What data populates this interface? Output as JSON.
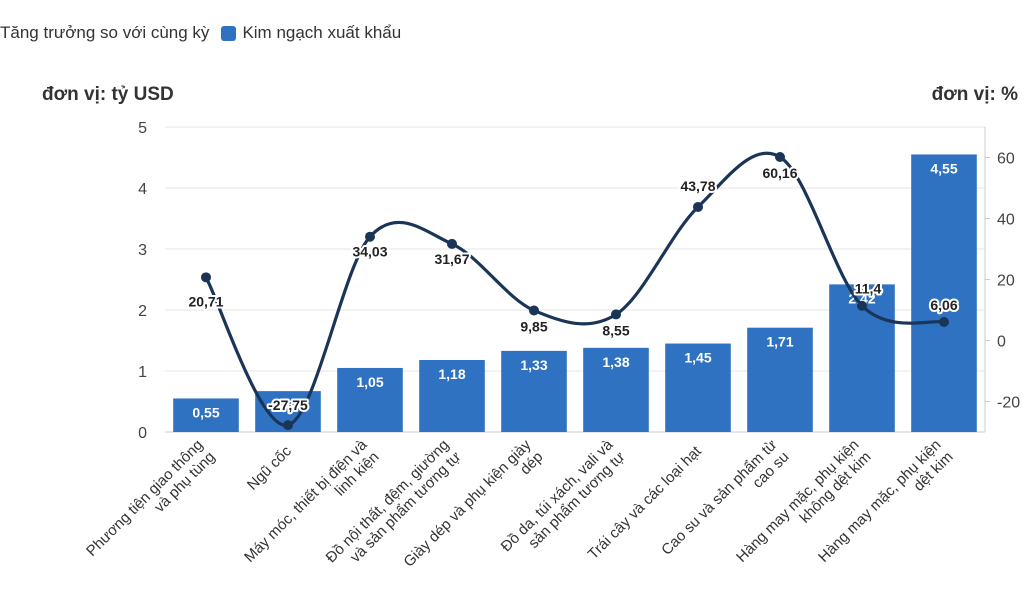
{
  "chart_data": {
    "type": "bar",
    "categories": [
      [
        "Phương tiện giao thông",
        "và phụ tùng"
      ],
      [
        "Ngũ cốc"
      ],
      [
        "Máy móc, thiết bị điện và",
        "linh kiện"
      ],
      [
        "Đồ nội thất, đệm, giường",
        "và sản phẩm tương tự"
      ],
      [
        "Giày dép và phụ kiện giày",
        "dép"
      ],
      [
        "Đồ da, túi xách, vali và",
        "sản phẩm tương tự"
      ],
      [
        "Trái cây và các loại hạt"
      ],
      [
        "Cao su và sản phẩm từ",
        "cao su"
      ],
      [
        "Hàng may mặc, phụ kiện",
        "không dệt kim"
      ],
      [
        "Hàng may mặc, phụ kiện",
        "dệt kim"
      ]
    ],
    "series": [
      {
        "name": "Kim ngạch xuất khẩu",
        "type": "bar",
        "axis": "left",
        "values": [
          0.55,
          0.67,
          1.05,
          1.18,
          1.33,
          1.38,
          1.45,
          1.71,
          2.42,
          4.55
        ],
        "labels": [
          "0,55",
          "0,67",
          "1,05",
          "1,18",
          "1,33",
          "1,38",
          "1,45",
          "1,71",
          "2,42",
          "4,55"
        ]
      },
      {
        "name": "Tăng trưởng so với cùng kỳ",
        "type": "line",
        "axis": "right",
        "values": [
          20.71,
          -27.75,
          34.03,
          31.67,
          9.85,
          8.55,
          43.78,
          60.16,
          11.4,
          6.06
        ],
        "labels": [
          "20,71",
          "-27,75",
          "34,03",
          "31,67",
          "9,85",
          "8,55",
          "43,78",
          "60,16",
          "11,4",
          "6,06"
        ]
      }
    ],
    "y_left": {
      "label": "đơn vị: tỷ USD",
      "min": 0,
      "max": 5,
      "ticks": [
        0,
        1,
        2,
        3,
        4,
        5
      ]
    },
    "y_right": {
      "label": "đơn vị: %",
      "min": -30,
      "max": 70,
      "ticks": [
        -20,
        0,
        20,
        40,
        60
      ]
    },
    "grid": true,
    "legend_position": "top-left"
  },
  "legend": {
    "items": [
      {
        "label": "Tăng trưởng so với cùng kỳ",
        "color": "#1a3557",
        "shape": "line"
      },
      {
        "label": "Kim ngạch xuất khẩu",
        "color": "#2f72c2",
        "shape": "square"
      }
    ]
  },
  "colors": {
    "bar": "#2f72c2",
    "line": "#1a3557",
    "grid": "#e6e6e6",
    "axis": "#cccccc"
  }
}
